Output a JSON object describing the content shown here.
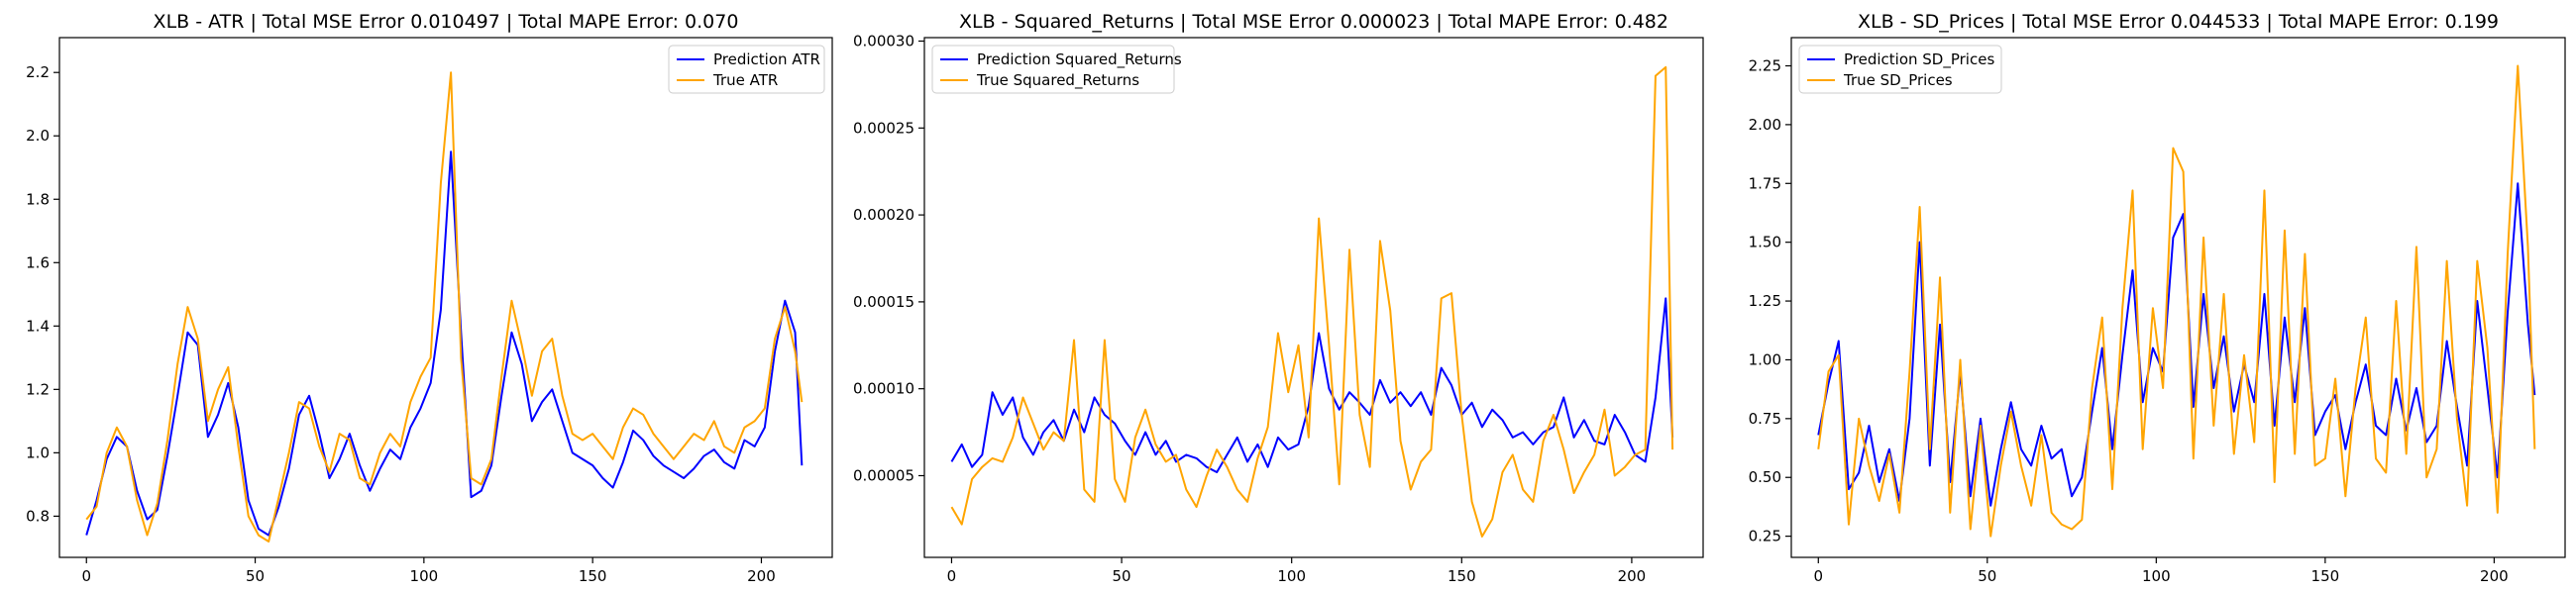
{
  "chart_data": [
    {
      "type": "line",
      "title": "XLB - ATR | Total MSE Error 0.010497 | Total MAPE Error: 0.070",
      "xlabel": "",
      "ylabel": "",
      "xlim": [
        -8,
        221
      ],
      "ylim": [
        0.67,
        2.31
      ],
      "xticks": [
        0,
        50,
        100,
        150,
        200
      ],
      "yticks": [
        0.8,
        1.0,
        1.2,
        1.4,
        1.6,
        1.8,
        2.0,
        2.2
      ],
      "ytick_labels": [
        "0.8",
        "1.0",
        "1.2",
        "1.4",
        "1.6",
        "1.8",
        "2.0",
        "2.2"
      ],
      "grid": false,
      "legend": "upper right",
      "series": [
        {
          "name": "Prediction ATR",
          "color": "#0000ff",
          "x": [
            0,
            3,
            6,
            9,
            12,
            15,
            18,
            21,
            24,
            27,
            30,
            33,
            36,
            39,
            42,
            45,
            48,
            51,
            54,
            57,
            60,
            63,
            66,
            69,
            72,
            75,
            78,
            81,
            84,
            87,
            90,
            93,
            96,
            99,
            102,
            105,
            108,
            111,
            114,
            117,
            120,
            123,
            126,
            129,
            132,
            135,
            138,
            141,
            144,
            147,
            150,
            153,
            156,
            159,
            162,
            165,
            168,
            171,
            174,
            177,
            180,
            183,
            186,
            189,
            192,
            195,
            198,
            201,
            204,
            207,
            210,
            212
          ],
          "y": [
            0.74,
            0.85,
            0.98,
            1.05,
            1.02,
            0.88,
            0.79,
            0.82,
            0.99,
            1.18,
            1.38,
            1.34,
            1.05,
            1.12,
            1.22,
            1.08,
            0.85,
            0.76,
            0.74,
            0.83,
            0.95,
            1.12,
            1.18,
            1.06,
            0.92,
            0.98,
            1.06,
            0.96,
            0.88,
            0.95,
            1.01,
            0.98,
            1.08,
            1.14,
            1.22,
            1.45,
            1.95,
            1.38,
            0.86,
            0.88,
            0.96,
            1.18,
            1.38,
            1.28,
            1.1,
            1.16,
            1.2,
            1.1,
            1.0,
            0.98,
            0.96,
            0.92,
            0.89,
            0.97,
            1.07,
            1.04,
            0.99,
            0.96,
            0.94,
            0.92,
            0.95,
            0.99,
            1.01,
            0.97,
            0.95,
            1.04,
            1.02,
            1.08,
            1.32,
            1.48,
            1.38,
            0.96
          ]
        },
        {
          "name": "True ATR",
          "color": "#ffa500",
          "x": [
            0,
            3,
            6,
            9,
            12,
            15,
            18,
            21,
            24,
            27,
            30,
            33,
            36,
            39,
            42,
            45,
            48,
            51,
            54,
            57,
            60,
            63,
            66,
            69,
            72,
            75,
            78,
            81,
            84,
            87,
            90,
            93,
            96,
            99,
            102,
            105,
            108,
            111,
            114,
            117,
            120,
            123,
            126,
            129,
            132,
            135,
            138,
            141,
            144,
            147,
            150,
            153,
            156,
            159,
            162,
            165,
            168,
            171,
            174,
            177,
            180,
            183,
            186,
            189,
            192,
            195,
            198,
            201,
            204,
            207,
            210,
            212
          ],
          "y": [
            0.79,
            0.83,
            1.0,
            1.08,
            1.02,
            0.85,
            0.74,
            0.84,
            1.04,
            1.28,
            1.46,
            1.36,
            1.1,
            1.2,
            1.27,
            1.02,
            0.8,
            0.74,
            0.72,
            0.86,
            1.0,
            1.16,
            1.14,
            1.02,
            0.94,
            1.06,
            1.04,
            0.92,
            0.9,
            1.0,
            1.06,
            1.02,
            1.16,
            1.24,
            1.3,
            1.85,
            2.2,
            1.3,
            0.92,
            0.9,
            0.98,
            1.24,
            1.48,
            1.34,
            1.18,
            1.32,
            1.36,
            1.18,
            1.06,
            1.04,
            1.06,
            1.02,
            0.98,
            1.08,
            1.14,
            1.12,
            1.06,
            1.02,
            0.98,
            1.02,
            1.06,
            1.04,
            1.1,
            1.02,
            1.0,
            1.08,
            1.1,
            1.14,
            1.36,
            1.46,
            1.32,
            1.16
          ]
        }
      ]
    },
    {
      "type": "line",
      "title": "XLB - Squared_Returns | Total MSE Error 0.000023 | Total MAPE Error: 0.482",
      "xlabel": "",
      "ylabel": "",
      "xlim": [
        -8,
        221
      ],
      "ylim": [
        3e-06,
        0.000302
      ],
      "xticks": [
        0,
        50,
        100,
        150,
        200
      ],
      "yticks": [
        5e-05,
        0.0001,
        0.00015,
        0.0002,
        0.00025,
        0.0003
      ],
      "ytick_labels": [
        "0.00005",
        "0.00010",
        "0.00015",
        "0.00020",
        "0.00025",
        "0.00030"
      ],
      "grid": false,
      "legend": "upper left",
      "series": [
        {
          "name": "Prediction Squared_Returns",
          "color": "#0000ff",
          "x": [
            0,
            3,
            6,
            9,
            12,
            15,
            18,
            21,
            24,
            27,
            30,
            33,
            36,
            39,
            42,
            45,
            48,
            51,
            54,
            57,
            60,
            63,
            66,
            69,
            72,
            75,
            78,
            81,
            84,
            87,
            90,
            93,
            96,
            99,
            102,
            105,
            108,
            111,
            114,
            117,
            120,
            123,
            126,
            129,
            132,
            135,
            138,
            141,
            144,
            147,
            150,
            153,
            156,
            159,
            162,
            165,
            168,
            171,
            174,
            177,
            180,
            183,
            186,
            189,
            192,
            195,
            198,
            201,
            204,
            207,
            210,
            212
          ],
          "y": [
            5.8e-05,
            6.8e-05,
            5.5e-05,
            6.2e-05,
            9.8e-05,
            8.5e-05,
            9.5e-05,
            7.2e-05,
            6.2e-05,
            7.5e-05,
            8.2e-05,
            7e-05,
            8.8e-05,
            7.5e-05,
            9.5e-05,
            8.5e-05,
            8e-05,
            7e-05,
            6.2e-05,
            7.5e-05,
            6.2e-05,
            7e-05,
            5.8e-05,
            6.2e-05,
            6e-05,
            5.5e-05,
            5.2e-05,
            6.2e-05,
            7.2e-05,
            5.8e-05,
            6.8e-05,
            5.5e-05,
            7.2e-05,
            6.5e-05,
            6.8e-05,
            9e-05,
            0.000132,
            0.0001,
            8.8e-05,
            9.8e-05,
            9.2e-05,
            8.5e-05,
            0.000105,
            9.2e-05,
            9.8e-05,
            9e-05,
            9.8e-05,
            8.5e-05,
            0.000112,
            0.000102,
            8.5e-05,
            9.2e-05,
            7.8e-05,
            8.8e-05,
            8.2e-05,
            7.2e-05,
            7.5e-05,
            6.8e-05,
            7.5e-05,
            7.8e-05,
            9.5e-05,
            7.2e-05,
            8.2e-05,
            7e-05,
            6.8e-05,
            8.5e-05,
            7.5e-05,
            6.2e-05,
            5.8e-05,
            9.5e-05,
            0.000152,
            7.2e-05
          ]
        },
        {
          "name": "True Squared_Returns",
          "color": "#ffa500",
          "x": [
            0,
            3,
            6,
            9,
            12,
            15,
            18,
            21,
            24,
            27,
            30,
            33,
            36,
            39,
            42,
            45,
            48,
            51,
            54,
            57,
            60,
            63,
            66,
            69,
            72,
            75,
            78,
            81,
            84,
            87,
            90,
            93,
            96,
            99,
            102,
            105,
            108,
            111,
            114,
            117,
            120,
            123,
            126,
            129,
            132,
            135,
            138,
            141,
            144,
            147,
            150,
            153,
            156,
            159,
            162,
            165,
            168,
            171,
            174,
            177,
            180,
            183,
            186,
            189,
            192,
            195,
            198,
            201,
            204,
            207,
            210,
            212
          ],
          "y": [
            3.2e-05,
            2.2e-05,
            4.8e-05,
            5.5e-05,
            6e-05,
            5.8e-05,
            7.2e-05,
            9.5e-05,
            8e-05,
            6.5e-05,
            7.5e-05,
            7e-05,
            0.000128,
            4.2e-05,
            3.5e-05,
            0.000128,
            4.8e-05,
            3.5e-05,
            7.2e-05,
            8.8e-05,
            6.8e-05,
            5.8e-05,
            6.2e-05,
            4.2e-05,
            3.2e-05,
            5e-05,
            6.5e-05,
            5.5e-05,
            4.2e-05,
            3.5e-05,
            6e-05,
            7.8e-05,
            0.000132,
            9.8e-05,
            0.000125,
            7.2e-05,
            0.000198,
            0.000125,
            4.5e-05,
            0.00018,
            8.5e-05,
            5.5e-05,
            0.000185,
            0.000145,
            7e-05,
            4.2e-05,
            5.8e-05,
            6.5e-05,
            0.000152,
            0.000155,
            8.5e-05,
            3.5e-05,
            1.5e-05,
            2.5e-05,
            5.2e-05,
            6.2e-05,
            4.2e-05,
            3.5e-05,
            7e-05,
            8.5e-05,
            6.5e-05,
            4e-05,
            5.2e-05,
            6.2e-05,
            8.8e-05,
            5e-05,
            5.5e-05,
            6.2e-05,
            6.5e-05,
            0.00028,
            0.000285,
            6.5e-05
          ]
        }
      ]
    },
    {
      "type": "line",
      "title": "XLB - SD_Prices | Total MSE Error 0.044533 | Total MAPE Error: 0.199",
      "xlabel": "",
      "ylabel": "",
      "xlim": [
        -8,
        221
      ],
      "ylim": [
        0.16,
        2.37
      ],
      "xticks": [
        0,
        50,
        100,
        150,
        200
      ],
      "yticks": [
        0.25,
        0.5,
        0.75,
        1.0,
        1.25,
        1.5,
        1.75,
        2.0,
        2.25
      ],
      "ytick_labels": [
        "0.25",
        "0.50",
        "0.75",
        "1.00",
        "1.25",
        "1.50",
        "1.75",
        "2.00",
        "2.25"
      ],
      "grid": false,
      "legend": "upper left",
      "series": [
        {
          "name": "Prediction SD_Prices",
          "color": "#0000ff",
          "x": [
            0,
            3,
            6,
            9,
            12,
            15,
            18,
            21,
            24,
            27,
            30,
            33,
            36,
            39,
            42,
            45,
            48,
            51,
            54,
            57,
            60,
            63,
            66,
            69,
            72,
            75,
            78,
            81,
            84,
            87,
            90,
            93,
            96,
            99,
            102,
            105,
            108,
            111,
            114,
            117,
            120,
            123,
            126,
            129,
            132,
            135,
            138,
            141,
            144,
            147,
            150,
            153,
            156,
            159,
            162,
            165,
            168,
            171,
            174,
            177,
            180,
            183,
            186,
            189,
            192,
            195,
            198,
            201,
            204,
            207,
            210,
            212
          ],
          "y": [
            0.68,
            0.9,
            1.08,
            0.45,
            0.52,
            0.72,
            0.48,
            0.62,
            0.4,
            0.75,
            1.5,
            0.55,
            1.15,
            0.48,
            0.95,
            0.42,
            0.75,
            0.38,
            0.62,
            0.82,
            0.62,
            0.55,
            0.72,
            0.58,
            0.62,
            0.42,
            0.5,
            0.78,
            1.05,
            0.62,
            1.02,
            1.38,
            0.82,
            1.05,
            0.95,
            1.52,
            1.62,
            0.8,
            1.28,
            0.88,
            1.1,
            0.78,
            0.98,
            0.82,
            1.28,
            0.72,
            1.18,
            0.82,
            1.22,
            0.68,
            0.78,
            0.85,
            0.62,
            0.82,
            0.98,
            0.72,
            0.68,
            0.92,
            0.7,
            0.88,
            0.65,
            0.72,
            1.08,
            0.8,
            0.55,
            1.25,
            0.88,
            0.5,
            1.2,
            1.75,
            1.15,
            0.85
          ]
        },
        {
          "name": "True SD_Prices",
          "color": "#ffa500",
          "x": [
            0,
            3,
            6,
            9,
            12,
            15,
            18,
            21,
            24,
            27,
            30,
            33,
            36,
            39,
            42,
            45,
            48,
            51,
            54,
            57,
            60,
            63,
            66,
            69,
            72,
            75,
            78,
            81,
            84,
            87,
            90,
            93,
            96,
            99,
            102,
            105,
            108,
            111,
            114,
            117,
            120,
            123,
            126,
            129,
            132,
            135,
            138,
            141,
            144,
            147,
            150,
            153,
            156,
            159,
            162,
            165,
            168,
            171,
            174,
            177,
            180,
            183,
            186,
            189,
            192,
            195,
            198,
            201,
            204,
            207,
            210,
            212
          ],
          "y": [
            0.62,
            0.95,
            1.02,
            0.3,
            0.75,
            0.55,
            0.4,
            0.6,
            0.35,
            0.95,
            1.65,
            0.62,
            1.35,
            0.35,
            1.0,
            0.28,
            0.72,
            0.25,
            0.55,
            0.78,
            0.55,
            0.38,
            0.68,
            0.35,
            0.3,
            0.28,
            0.32,
            0.88,
            1.18,
            0.45,
            1.22,
            1.72,
            0.62,
            1.22,
            0.88,
            1.9,
            1.8,
            0.58,
            1.52,
            0.72,
            1.28,
            0.6,
            1.02,
            0.65,
            1.72,
            0.48,
            1.55,
            0.6,
            1.45,
            0.55,
            0.58,
            0.92,
            0.42,
            0.88,
            1.18,
            0.58,
            0.52,
            1.25,
            0.6,
            1.48,
            0.5,
            0.62,
            1.42,
            0.75,
            0.38,
            1.42,
            1.05,
            0.35,
            1.45,
            2.25,
            1.48,
            0.62
          ]
        }
      ]
    }
  ]
}
